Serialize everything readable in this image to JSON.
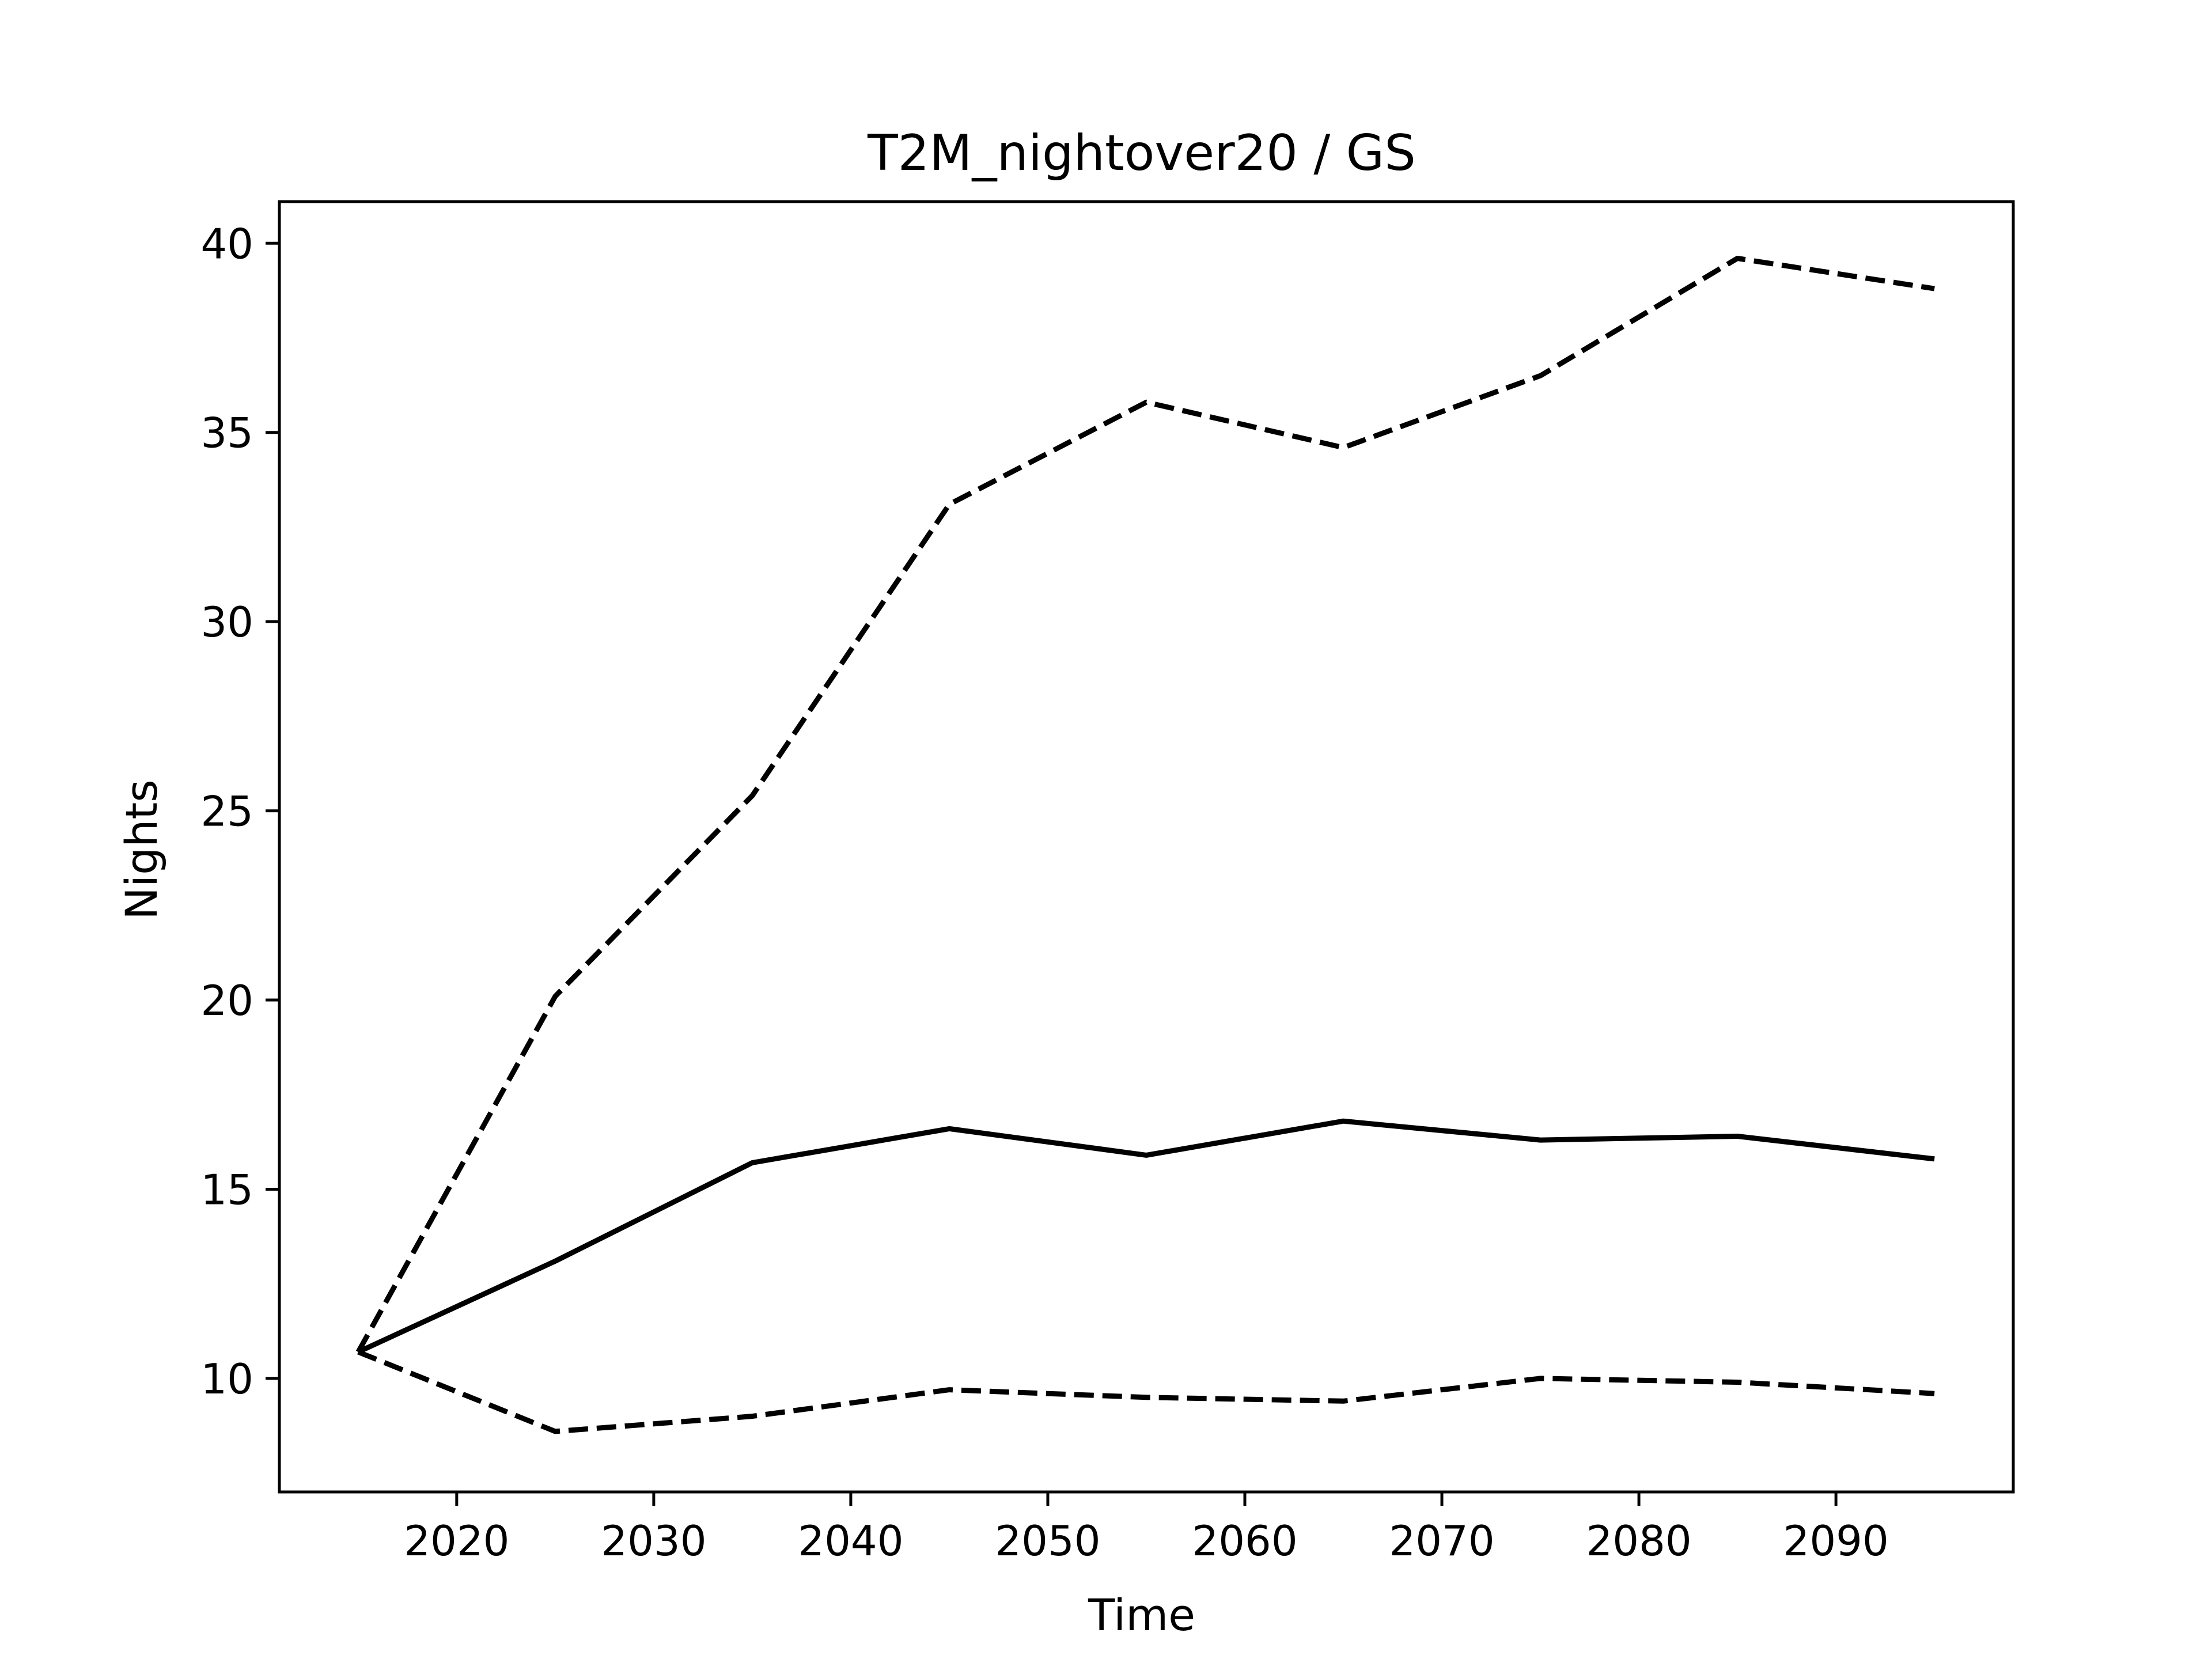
{
  "chart_data": {
    "type": "line",
    "title": "T2M_nightover20 / GS",
    "xlabel": "Time",
    "ylabel": "Nights",
    "xlim": [
      2011,
      2099
    ],
    "ylim": [
      7.0,
      41.1
    ],
    "xticks": [
      2020,
      2030,
      2040,
      2050,
      2060,
      2070,
      2080,
      2090
    ],
    "yticks": [
      10,
      15,
      20,
      25,
      30,
      35,
      40
    ],
    "grid": false,
    "legend": "none",
    "x": [
      2015,
      2025,
      2035,
      2045,
      2055,
      2065,
      2075,
      2085,
      2095
    ],
    "series": [
      {
        "style": "solid",
        "color": "#000000",
        "values": [
          10.7,
          13.1,
          15.7,
          16.6,
          15.9,
          16.8,
          16.3,
          16.4,
          15.8
        ]
      },
      {
        "style": "dashed",
        "color": "#000000",
        "values": [
          10.7,
          20.1,
          25.4,
          33.1,
          35.8,
          34.6,
          36.5,
          39.6,
          38.8
        ]
      },
      {
        "style": "dashed",
        "color": "#000000",
        "values": [
          10.7,
          8.6,
          9.0,
          9.7,
          9.5,
          9.4,
          10.0,
          9.9,
          9.6
        ]
      }
    ]
  }
}
